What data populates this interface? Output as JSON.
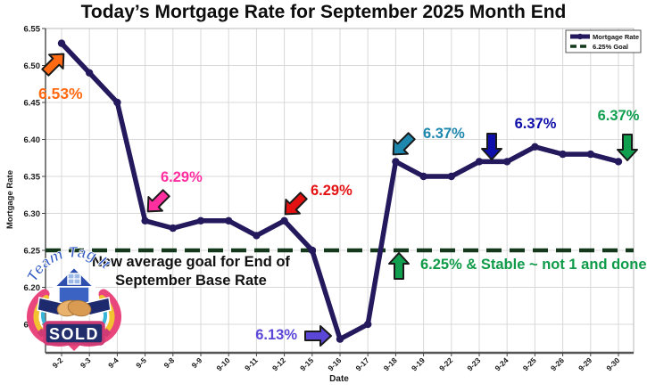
{
  "title": "Today’s Mortgage Rate for September 2025 Month End",
  "chart_data": {
    "type": "line",
    "x": [
      "9-2",
      "9-3",
      "9-4",
      "9-5",
      "9-8",
      "9-9",
      "9-10",
      "9-11",
      "9-12",
      "9-15",
      "9-16",
      "9-17",
      "9-18",
      "9-19",
      "9-22",
      "9-23",
      "9-24",
      "9-25",
      "9-26",
      "9-29",
      "9-30"
    ],
    "series": [
      {
        "name": "Mortgage Rate",
        "color": "#23195c",
        "values": [
          6.53,
          6.49,
          6.45,
          6.29,
          6.28,
          6.29,
          6.29,
          6.27,
          6.29,
          6.25,
          6.13,
          6.15,
          6.37,
          6.35,
          6.35,
          6.37,
          6.37,
          6.39,
          6.38,
          6.38,
          6.37
        ]
      }
    ],
    "goal_line": {
      "name": "6.25% Goal",
      "value": 6.25,
      "color": "#14381c",
      "style": "dashed"
    },
    "xlabel": "Date",
    "ylabel": "Mortgage Rate",
    "ylim": [
      6.11,
      6.56
    ],
    "yticks": [
      6.15,
      6.2,
      6.25,
      6.3,
      6.35,
      6.4,
      6.45,
      6.5,
      6.55
    ],
    "grid": true,
    "legend_position": "upper right"
  },
  "legend": {
    "series_label": "Mortgage Rate",
    "goal_label": "6.25% Goal"
  },
  "annotations": [
    {
      "text": "6.53%",
      "color": "#ff6a13",
      "direction": "up-right"
    },
    {
      "text": "6.29%",
      "color": "#ff2fa0",
      "direction": "down-left"
    },
    {
      "text": "6.29%",
      "color": "#e31111",
      "direction": "down-left"
    },
    {
      "text": "6.13%",
      "color": "#5a47d8",
      "direction": "right"
    },
    {
      "text": "6.37%",
      "color": "#1d87ae",
      "direction": "down-left"
    },
    {
      "text": "6.37%",
      "color": "#0e0eaa",
      "direction": "down"
    },
    {
      "text": "6.37%",
      "color": "#0f9f4f",
      "direction": "down"
    },
    {
      "text": "",
      "color": "#0f9f4f",
      "direction": "up"
    }
  ],
  "goal_note": {
    "lines": [
      "New average goal for End of",
      "September Base Rate"
    ],
    "color": "#111111"
  },
  "stable_note": {
    "text": "6.25% & Stable ~ not 1 and done",
    "color": "#0f9b48"
  },
  "logo": {
    "arc_text": "Team Tag It",
    "badge_text": "SOLD"
  },
  "colors": {
    "grid": "#d8d8d8",
    "axis": "#555555",
    "tick_text": "#1a1a1a"
  }
}
